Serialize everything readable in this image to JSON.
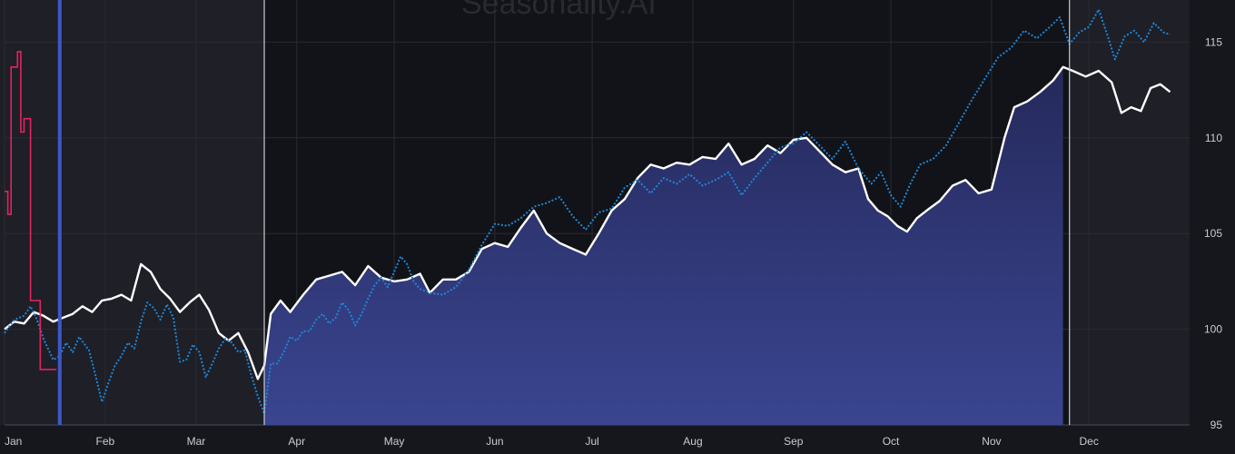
{
  "watermark": "Seasonality.AI",
  "colors": {
    "background": "#16171d",
    "plot_background": "#121318",
    "shaded_background": "#1e1f27",
    "grid": "#2a2b33",
    "seasonal_line": "#ffffff",
    "seasonal_fill_top": "#25295b",
    "seasonal_fill_bottom": "#3a4590",
    "current_year_line": "#1f86d6",
    "early_line": "#e3245f",
    "marker_line": "#3d58c8",
    "window_line": "#c8cad2",
    "axis_text": "#c9cbd3"
  },
  "chart_data": {
    "type": "line",
    "x_axis": {
      "tick_labels": [
        "Jan",
        "Feb",
        "Mar",
        "Apr",
        "May",
        "Jun",
        "Jul",
        "Aug",
        "Sep",
        "Oct",
        "Nov",
        "Dec"
      ],
      "range_days": [
        0,
        365
      ]
    },
    "y_axis": {
      "position": "right",
      "ticks": [
        95,
        100,
        105,
        110,
        115
      ],
      "tick_labels": [
        "95",
        "100",
        "105",
        "110",
        "115"
      ],
      "ylim": [
        95,
        117.2
      ]
    },
    "grid": true,
    "highlight_window": {
      "start_day": 80,
      "end_day": 328
    },
    "marker_day": 17,
    "series": [
      {
        "role": "seasonal",
        "style": "solid-with-fill",
        "points": [
          [
            0,
            100
          ],
          [
            3,
            100.4
          ],
          [
            6,
            100.3
          ],
          [
            9,
            100.9
          ],
          [
            12,
            100.7
          ],
          [
            15,
            100.4
          ],
          [
            18,
            100.6
          ],
          [
            21,
            100.8
          ],
          [
            24,
            101.2
          ],
          [
            27,
            100.9
          ],
          [
            30,
            101.5
          ],
          [
            33,
            101.6
          ],
          [
            36,
            101.8
          ],
          [
            39,
            101.5
          ],
          [
            42,
            103.4
          ],
          [
            45,
            103.0
          ],
          [
            48,
            102.1
          ],
          [
            51,
            101.6
          ],
          [
            54,
            100.9
          ],
          [
            57,
            101.4
          ],
          [
            60,
            101.8
          ],
          [
            63,
            101.0
          ],
          [
            66,
            99.8
          ],
          [
            69,
            99.4
          ],
          [
            72,
            99.8
          ],
          [
            75,
            98.8
          ],
          [
            78,
            97.4
          ],
          [
            80,
            98.1
          ],
          [
            82,
            100.8
          ],
          [
            85,
            101.5
          ],
          [
            88,
            100.9
          ],
          [
            92,
            101.8
          ],
          [
            96,
            102.6
          ],
          [
            100,
            102.8
          ],
          [
            104,
            103.0
          ],
          [
            108,
            102.3
          ],
          [
            112,
            103.3
          ],
          [
            116,
            102.7
          ],
          [
            120,
            102.5
          ],
          [
            124,
            102.6
          ],
          [
            128,
            102.9
          ],
          [
            131,
            101.9
          ],
          [
            135,
            102.6
          ],
          [
            139,
            102.6
          ],
          [
            143,
            103.0
          ],
          [
            147,
            104.2
          ],
          [
            151,
            104.5
          ],
          [
            155,
            104.3
          ],
          [
            159,
            105.3
          ],
          [
            163,
            106.2
          ],
          [
            167,
            105.0
          ],
          [
            171,
            104.5
          ],
          [
            175,
            104.2
          ],
          [
            179,
            103.9
          ],
          [
            183,
            105.0
          ],
          [
            187,
            106.2
          ],
          [
            191,
            106.8
          ],
          [
            195,
            107.9
          ],
          [
            199,
            108.6
          ],
          [
            203,
            108.4
          ],
          [
            207,
            108.7
          ],
          [
            211,
            108.6
          ],
          [
            215,
            109.0
          ],
          [
            219,
            108.9
          ],
          [
            223,
            109.7
          ],
          [
            227,
            108.6
          ],
          [
            231,
            108.9
          ],
          [
            235,
            109.6
          ],
          [
            239,
            109.2
          ],
          [
            243,
            109.9
          ],
          [
            247,
            110.0
          ],
          [
            251,
            109.3
          ],
          [
            255,
            108.6
          ],
          [
            259,
            108.2
          ],
          [
            263,
            108.4
          ],
          [
            266,
            106.8
          ],
          [
            269,
            106.2
          ],
          [
            272,
            105.9
          ],
          [
            275,
            105.4
          ],
          [
            278,
            105.1
          ],
          [
            281,
            105.8
          ],
          [
            284,
            106.2
          ],
          [
            288,
            106.7
          ],
          [
            292,
            107.5
          ],
          [
            296,
            107.8
          ],
          [
            300,
            107.1
          ],
          [
            304,
            107.3
          ],
          [
            308,
            110.0
          ],
          [
            311,
            111.6
          ],
          [
            315,
            111.9
          ],
          [
            319,
            112.4
          ],
          [
            323,
            113.0
          ],
          [
            326,
            113.7
          ],
          [
            329,
            113.5
          ],
          [
            333,
            113.2
          ],
          [
            337,
            113.5
          ],
          [
            341,
            112.9
          ],
          [
            344,
            111.3
          ],
          [
            347,
            111.6
          ],
          [
            350,
            111.4
          ],
          [
            353,
            112.6
          ],
          [
            356,
            112.8
          ],
          [
            359,
            112.4
          ]
        ]
      },
      {
        "role": "current-year",
        "style": "dotted",
        "points": [
          [
            0,
            99.8
          ],
          [
            3,
            100.5
          ],
          [
            6,
            100.7
          ],
          [
            8,
            101.2
          ],
          [
            10,
            100.5
          ],
          [
            12,
            99.5
          ],
          [
            15,
            98.4
          ],
          [
            17,
            98.6
          ],
          [
            19,
            99.3
          ],
          [
            21,
            98.8
          ],
          [
            23,
            99.6
          ],
          [
            26,
            98.9
          ],
          [
            28,
            97.6
          ],
          [
            30,
            96.2
          ],
          [
            32,
            97.2
          ],
          [
            34,
            98.1
          ],
          [
            36,
            98.6
          ],
          [
            38,
            99.3
          ],
          [
            40,
            99.0
          ],
          [
            42,
            100.4
          ],
          [
            44,
            101.4
          ],
          [
            46,
            101.1
          ],
          [
            48,
            100.5
          ],
          [
            50,
            101.3
          ],
          [
            52,
            100.6
          ],
          [
            54,
            98.3
          ],
          [
            56,
            98.4
          ],
          [
            58,
            99.2
          ],
          [
            60,
            98.8
          ],
          [
            62,
            97.5
          ],
          [
            64,
            98.2
          ],
          [
            66,
            99.0
          ],
          [
            68,
            99.5
          ],
          [
            70,
            99.3
          ],
          [
            72,
            98.8
          ],
          [
            74,
            98.9
          ],
          [
            76,
            97.6
          ],
          [
            78,
            96.5
          ],
          [
            80,
            95.6
          ],
          [
            82,
            98.2
          ],
          [
            84,
            98.2
          ],
          [
            86,
            98.8
          ],
          [
            88,
            99.6
          ],
          [
            90,
            99.4
          ],
          [
            92,
            99.9
          ],
          [
            94,
            99.9
          ],
          [
            96,
            100.5
          ],
          [
            98,
            100.8
          ],
          [
            100,
            100.3
          ],
          [
            102,
            100.6
          ],
          [
            104,
            101.4
          ],
          [
            106,
            101.0
          ],
          [
            108,
            100.2
          ],
          [
            110,
            100.8
          ],
          [
            112,
            101.6
          ],
          [
            114,
            102.3
          ],
          [
            116,
            102.7
          ],
          [
            118,
            102.2
          ],
          [
            120,
            103.0
          ],
          [
            122,
            103.8
          ],
          [
            124,
            103.4
          ],
          [
            126,
            102.5
          ],
          [
            128,
            102.1
          ],
          [
            131,
            101.9
          ],
          [
            135,
            101.8
          ],
          [
            139,
            102.2
          ],
          [
            143,
            103.1
          ],
          [
            147,
            104.4
          ],
          [
            151,
            105.5
          ],
          [
            155,
            105.4
          ],
          [
            159,
            105.8
          ],
          [
            163,
            106.4
          ],
          [
            167,
            106.6
          ],
          [
            171,
            106.9
          ],
          [
            175,
            105.9
          ],
          [
            179,
            105.2
          ],
          [
            183,
            106.1
          ],
          [
            187,
            106.3
          ],
          [
            191,
            107.4
          ],
          [
            195,
            107.8
          ],
          [
            199,
            107.1
          ],
          [
            203,
            107.9
          ],
          [
            207,
            107.6
          ],
          [
            211,
            108.1
          ],
          [
            215,
            107.5
          ],
          [
            219,
            107.8
          ],
          [
            223,
            108.2
          ],
          [
            227,
            107.0
          ],
          [
            231,
            107.9
          ],
          [
            235,
            108.7
          ],
          [
            239,
            109.5
          ],
          [
            243,
            109.7
          ],
          [
            247,
            110.3
          ],
          [
            251,
            109.6
          ],
          [
            255,
            108.9
          ],
          [
            259,
            109.8
          ],
          [
            263,
            108.4
          ],
          [
            267,
            107.6
          ],
          [
            270,
            108.2
          ],
          [
            273,
            107.0
          ],
          [
            276,
            106.4
          ],
          [
            279,
            107.6
          ],
          [
            282,
            108.6
          ],
          [
            286,
            108.9
          ],
          [
            290,
            109.6
          ],
          [
            294,
            110.8
          ],
          [
            298,
            112.0
          ],
          [
            302,
            113.1
          ],
          [
            306,
            114.2
          ],
          [
            310,
            114.7
          ],
          [
            314,
            115.6
          ],
          [
            318,
            115.2
          ],
          [
            322,
            115.8
          ],
          [
            325,
            116.3
          ],
          [
            328,
            114.9
          ],
          [
            331,
            115.5
          ],
          [
            334,
            115.8
          ],
          [
            337,
            116.7
          ],
          [
            340,
            115.2
          ],
          [
            342,
            114.1
          ],
          [
            345,
            115.3
          ],
          [
            348,
            115.6
          ],
          [
            351,
            115.0
          ],
          [
            354,
            116.0
          ],
          [
            357,
            115.5
          ],
          [
            359,
            115.4
          ]
        ]
      },
      {
        "role": "early",
        "style": "stepped",
        "points": [
          [
            0,
            107.2
          ],
          [
            1,
            106.0
          ],
          [
            2,
            113.7
          ],
          [
            3,
            113.7
          ],
          [
            4,
            114.5
          ],
          [
            5,
            110.3
          ],
          [
            6,
            111.0
          ],
          [
            7,
            111.0
          ],
          [
            8,
            101.5
          ],
          [
            9,
            101.5
          ],
          [
            10,
            101.5
          ],
          [
            11,
            97.9
          ],
          [
            12,
            97.9
          ],
          [
            13,
            97.9
          ],
          [
            14,
            97.9
          ],
          [
            15,
            97.9
          ],
          [
            16,
            97.9
          ]
        ]
      }
    ]
  }
}
